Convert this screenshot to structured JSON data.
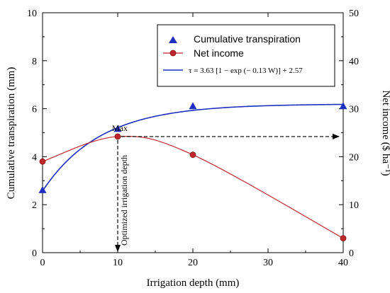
{
  "chart_data": {
    "type": "line",
    "xlabel": "Irrigation depth (mm)",
    "ylabel_left": "Cumulative transpiration (mm)",
    "ylabel_right": "Net income ($ ha⁻¹)",
    "xlim": [
      0,
      40
    ],
    "ylim_left": [
      0,
      10
    ],
    "ylim_right": [
      0,
      50
    ],
    "x_ticks": [
      "0",
      "10",
      "20",
      "30",
      "40"
    ],
    "y_left_ticks": [
      "0",
      "2",
      "4",
      "6",
      "8",
      "10"
    ],
    "y_right_ticks": [
      "0",
      "10",
      "20",
      "30",
      "40",
      "50"
    ],
    "legend_position": "top-right",
    "series": [
      {
        "name": "Cumulative transpiration",
        "kind": "scatter",
        "axis": "left",
        "marker": "triangle",
        "color": "#1f2fbf",
        "x": [
          0,
          10,
          20,
          40
        ],
        "y": [
          2.6,
          5.15,
          6.1,
          6.1
        ]
      },
      {
        "name": "Net income",
        "kind": "line-marker",
        "axis": "right",
        "marker": "circle",
        "color": "#c0282d",
        "x": [
          0,
          10,
          20,
          40
        ],
        "y": [
          19,
          24.2,
          20.4,
          3
        ]
      },
      {
        "name": "τ = 3.63 [1 − exp (− 0.13 W)] + 2.57",
        "kind": "fit-curve",
        "axis": "left",
        "color": "#1f2fbf",
        "a": 3.63,
        "b": 0.13,
        "c": 2.57
      }
    ],
    "annotations": {
      "max_label": "Max",
      "optimized_label": "Optimized irrigation depth",
      "max_x": 10,
      "max_y_right": 24.2
    }
  },
  "colors": {
    "blue": "#1f2fbf",
    "red": "#c0282d"
  }
}
